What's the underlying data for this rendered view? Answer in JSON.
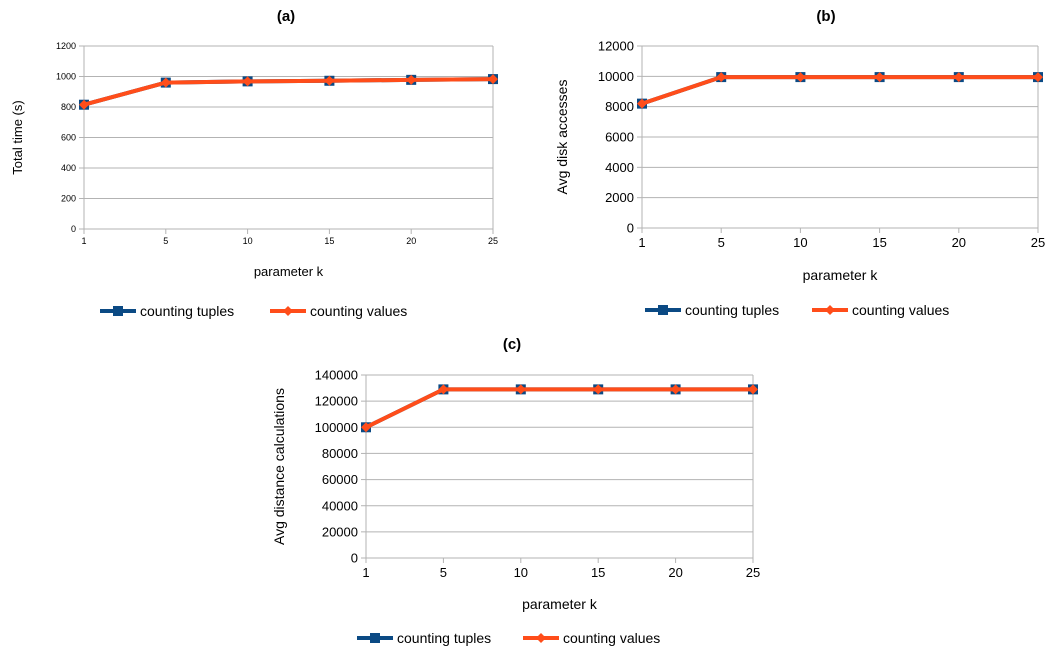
{
  "chart_data": [
    {
      "type": "line",
      "title": "(a)",
      "xlabel": "parameter k",
      "ylabel": "Total time (s)",
      "categories": [
        "1",
        "5",
        "10",
        "15",
        "20",
        "25"
      ],
      "ylim": [
        0,
        1200
      ],
      "yticks": [
        "0",
        "200",
        "400",
        "600",
        "800",
        "1000",
        "1200"
      ],
      "grid": true,
      "legend_position": "bottom",
      "series": [
        {
          "name": "counting tuples",
          "values": [
            815,
            960,
            968,
            972,
            978,
            983
          ],
          "color": "#0b4a84"
        },
        {
          "name": "counting values",
          "values": [
            815,
            960,
            968,
            972,
            978,
            983
          ],
          "color": "#ff4d1a"
        }
      ]
    },
    {
      "type": "line",
      "title": "(b)",
      "xlabel": "parameter k",
      "ylabel": "Avg disk accesses",
      "categories": [
        "1",
        "5",
        "10",
        "15",
        "20",
        "25"
      ],
      "ylim": [
        0,
        12000
      ],
      "yticks": [
        "0",
        "2000",
        "4000",
        "6000",
        "8000",
        "10000",
        "12000"
      ],
      "grid": true,
      "legend_position": "bottom",
      "series": [
        {
          "name": "counting tuples",
          "values": [
            8200,
            9950,
            9950,
            9950,
            9950,
            9950
          ],
          "color": "#0b4a84"
        },
        {
          "name": "counting values",
          "values": [
            8200,
            9950,
            9950,
            9950,
            9950,
            9950
          ],
          "color": "#ff4d1a"
        }
      ]
    },
    {
      "type": "line",
      "title": "(c)",
      "xlabel": "parameter k",
      "ylabel": "Avg distance calculations",
      "categories": [
        "1",
        "5",
        "10",
        "15",
        "20",
        "25"
      ],
      "ylim": [
        0,
        140000
      ],
      "yticks": [
        "0",
        "20000",
        "40000",
        "60000",
        "80000",
        "100000",
        "120000",
        "140000"
      ],
      "grid": true,
      "legend_position": "bottom",
      "series": [
        {
          "name": "counting tuples",
          "values": [
            100000,
            129000,
            129000,
            129000,
            129000,
            129000
          ],
          "color": "#0b4a84"
        },
        {
          "name": "counting values",
          "values": [
            100000,
            129000,
            129000,
            129000,
            129000,
            129000
          ],
          "color": "#ff4d1a"
        }
      ]
    }
  ]
}
